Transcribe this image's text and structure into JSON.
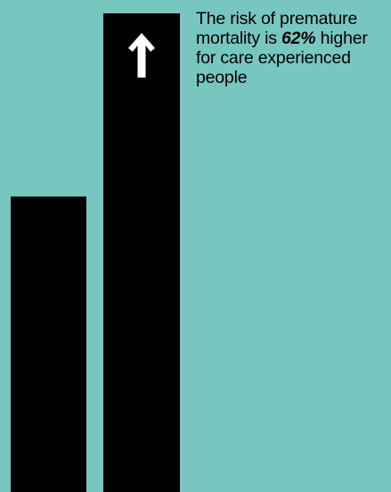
{
  "chart_data": {
    "type": "bar",
    "categories": [
      "",
      ""
    ],
    "values": [
      1.0,
      1.62
    ],
    "ylim": [
      0,
      1.62
    ],
    "grid": false,
    "legend": "none",
    "annotation": {
      "before": "The risk of premature mortality is ",
      "highlight": "62%",
      "after": " higher for care experienced people"
    },
    "marker": "arrow-up-icon"
  },
  "colors": {
    "background": "#78C6C0",
    "bar": "#000000",
    "arrow": "#FFFFFF",
    "text": "#000000"
  }
}
